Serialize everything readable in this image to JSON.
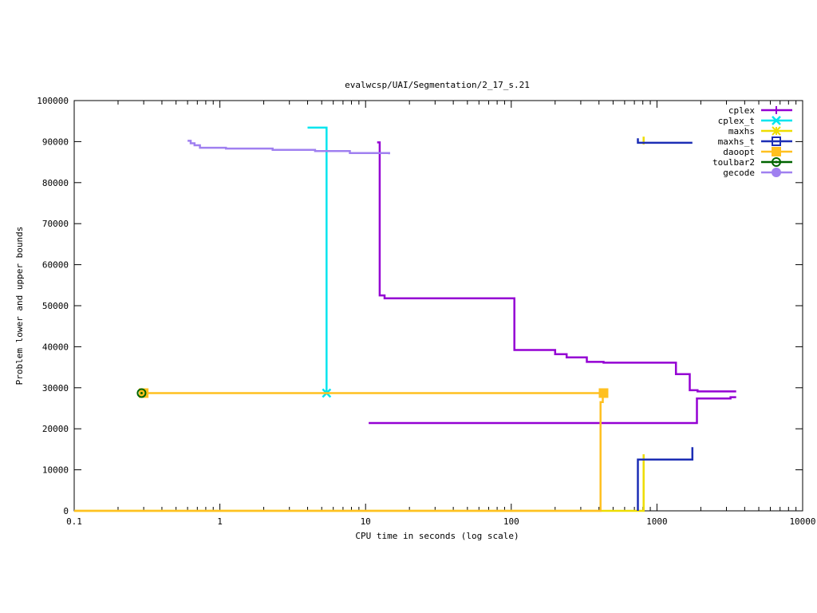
{
  "chart_data": {
    "type": "line",
    "title": "evalwcsp/UAI/Segmentation/2_17_s.21",
    "xlabel": "CPU time in seconds (log scale)",
    "ylabel": "Problem lower and upper bounds",
    "xscale": "log",
    "xlim": [
      0.1,
      10000
    ],
    "ylim": [
      0,
      100000
    ],
    "xticks": [
      {
        "v": 0.1,
        "label": "0.1"
      },
      {
        "v": 1,
        "label": "1"
      },
      {
        "v": 10,
        "label": "10"
      },
      {
        "v": 100,
        "label": "100"
      },
      {
        "v": 1000,
        "label": "1000"
      },
      {
        "v": 10000,
        "label": "10000"
      }
    ],
    "yticks": [
      {
        "v": 0,
        "label": "0"
      },
      {
        "v": 10000,
        "label": "10000"
      },
      {
        "v": 20000,
        "label": "20000"
      },
      {
        "v": 30000,
        "label": "30000"
      },
      {
        "v": 40000,
        "label": "40000"
      },
      {
        "v": 50000,
        "label": "50000"
      },
      {
        "v": 60000,
        "label": "60000"
      },
      {
        "v": 70000,
        "label": "70000"
      },
      {
        "v": 80000,
        "label": "80000"
      },
      {
        "v": 90000,
        "label": "90000"
      },
      {
        "v": 100000,
        "label": "100000"
      }
    ],
    "grid": false,
    "legend_position": "top-right",
    "series": [
      {
        "name": "cplex",
        "color": "#9400d3",
        "marker": "plus",
        "lines": [
          [
            [
              12.0,
              89800
            ],
            [
              12.5,
              89800
            ],
            [
              12.5,
              52500
            ],
            [
              13.5,
              52500
            ],
            [
              13.5,
              51800
            ],
            [
              105,
              51800
            ],
            [
              105,
              39200
            ],
            [
              200,
              39200
            ],
            [
              200,
              38200
            ],
            [
              240,
              38200
            ],
            [
              240,
              37400
            ],
            [
              330,
              37400
            ],
            [
              330,
              36300
            ],
            [
              430,
              36300
            ],
            [
              430,
              36100
            ],
            [
              1350,
              36100
            ],
            [
              1350,
              33300
            ],
            [
              1680,
              33300
            ],
            [
              1680,
              29400
            ],
            [
              1900,
              29400
            ],
            [
              1900,
              29100
            ],
            [
              3500,
              29100
            ]
          ],
          [
            [
              10.5,
              21400
            ],
            [
              1880,
              21400
            ],
            [
              1880,
              27400
            ],
            [
              3200,
              27400
            ],
            [
              3200,
              27700
            ],
            [
              3500,
              27700
            ]
          ]
        ],
        "markers": []
      },
      {
        "name": "cplex_t",
        "color": "#00e5ee",
        "marker": "x",
        "lines": [
          [
            [
              4.0,
              93400
            ],
            [
              5.4,
              93400
            ],
            [
              5.4,
              28700
            ]
          ]
        ],
        "markers": [
          [
            5.4,
            28700
          ]
        ]
      },
      {
        "name": "maxhs",
        "color": "#eedd00",
        "marker": "star",
        "lines": [
          [
            [
              0.1,
              0
            ],
            [
              810,
              0
            ],
            [
              810,
              13800
            ]
          ],
          [
            [
              810,
              89300
            ],
            [
              810,
              91200
            ]
          ]
        ],
        "markers": []
      },
      {
        "name": "maxhs_t",
        "color": "#1c2eb5",
        "marker": "box",
        "lines": [
          [
            [
              740,
              0
            ],
            [
              740,
              12500
            ],
            [
              1750,
              12500
            ],
            [
              1750,
              15500
            ]
          ],
          [
            [
              740,
              90800
            ],
            [
              740,
              89700
            ],
            [
              1750,
              89700
            ]
          ]
        ],
        "markers": []
      },
      {
        "name": "daoopt",
        "color": "#ffc020",
        "marker": "filled-box",
        "lines": [
          [
            [
              0.1,
              0
            ],
            [
              410,
              0
            ],
            [
              410,
              26500
            ],
            [
              425,
              26500
            ],
            [
              425,
              28700
            ],
            [
              0.3,
              28700
            ]
          ]
        ],
        "markers": [
          [
            0.3,
            28700
          ],
          [
            430,
            28700
          ]
        ]
      },
      {
        "name": "toulbar2",
        "color": "#006400",
        "marker": "circle",
        "lines": [],
        "markers": [
          [
            0.29,
            28700
          ]
        ]
      },
      {
        "name": "gecode",
        "color": "#a080f0",
        "marker": "filled-circle",
        "lines": [
          [
            [
              0.6,
              90200
            ],
            [
              0.63,
              90200
            ],
            [
              0.63,
              89600
            ],
            [
              0.67,
              89600
            ],
            [
              0.67,
              89100
            ],
            [
              0.73,
              89100
            ],
            [
              0.73,
              88500
            ],
            [
              1.1,
              88500
            ],
            [
              1.1,
              88300
            ],
            [
              2.3,
              88300
            ],
            [
              2.3,
              88000
            ],
            [
              4.5,
              88000
            ],
            [
              4.5,
              87700
            ],
            [
              7.8,
              87700
            ],
            [
              7.8,
              87200
            ],
            [
              14.5,
              87200
            ],
            [
              14.5,
              86900
            ]
          ]
        ],
        "markers": []
      }
    ]
  }
}
